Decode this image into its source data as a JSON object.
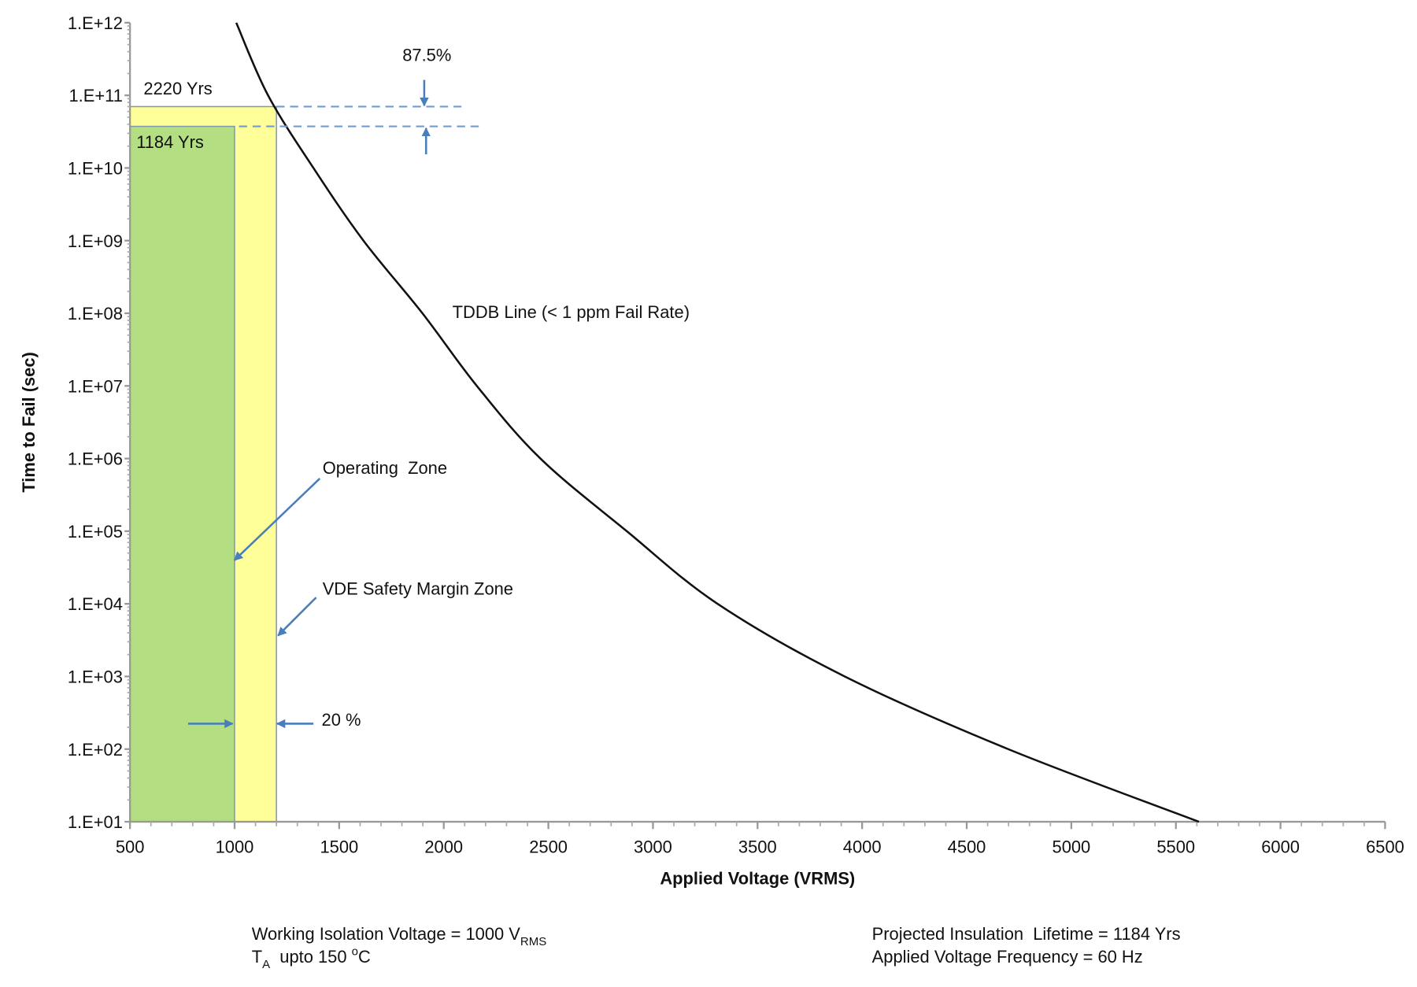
{
  "chart_data": {
    "type": "line",
    "title": "",
    "xlabel": "Applied Voltage (VRMS)",
    "ylabel": "Time to Fail (sec)",
    "xlim": [
      500,
      6500
    ],
    "ylim": [
      10,
      1000000000000.0
    ],
    "y_scale": "log",
    "x_ticks": [
      "500",
      "1000",
      "1500",
      "2000",
      "2500",
      "3000",
      "3500",
      "4000",
      "4500",
      "5000",
      "5500",
      "6000",
      "6500"
    ],
    "y_ticks": [
      "1.E+01",
      "1.E+02",
      "1.E+03",
      "1.E+04",
      "1.E+05",
      "1.E+06",
      "1.E+07",
      "1.E+08",
      "1.E+09",
      "1.E+10",
      "1.E+11",
      "1.E+12"
    ],
    "grid": false,
    "series": [
      {
        "name": "TDDB Line (< 1 ppm Fail Rate)",
        "color": "#111111",
        "x": [
          1008,
          1160,
          1377,
          1616,
          1898,
          2158,
          2462,
          2875,
          3309,
          3917,
          4698,
          5610
        ],
        "y": [
          1000000000000.0,
          100000000000.0,
          10000000000.0,
          1000000000.0,
          100000000.0,
          10000000.0,
          1000000.0,
          100000.0,
          10000.0,
          1000.0,
          100.0,
          10.0
        ]
      }
    ],
    "zones": [
      {
        "label": "VDE Safety Margin Zone",
        "x_range": [
          500,
          1200
        ],
        "top_seconds": 70000000000.0,
        "top_label": "2220 Yrs",
        "color": "#ffff99"
      },
      {
        "label": "Operating  Zone",
        "x_range": [
          500,
          1000
        ],
        "top_seconds": 37400000000.0,
        "top_label": "1184 Yrs",
        "color": "#b3de81"
      }
    ],
    "annotations": {
      "margin_pct": "87.5%",
      "voltage_margin": "20 %",
      "tddb_label": "TDDB Line (< 1 ppm Fail Rate)",
      "arrow_color": "#4a7ebb"
    }
  },
  "notes": {
    "left_line1_main": "Working Isolation Voltage = 1000 V",
    "left_line1_sub": "RMS",
    "left_line2_T": "T",
    "left_line2_sub": "A",
    "left_line2_rest": "  upto 150 ",
    "left_line2_sup": "o",
    "left_line2_unit": "C",
    "right_line1": "Projected Insulation  Lifetime = 1184 Yrs",
    "right_line2": "Applied Voltage Frequency = 60 Hz"
  }
}
